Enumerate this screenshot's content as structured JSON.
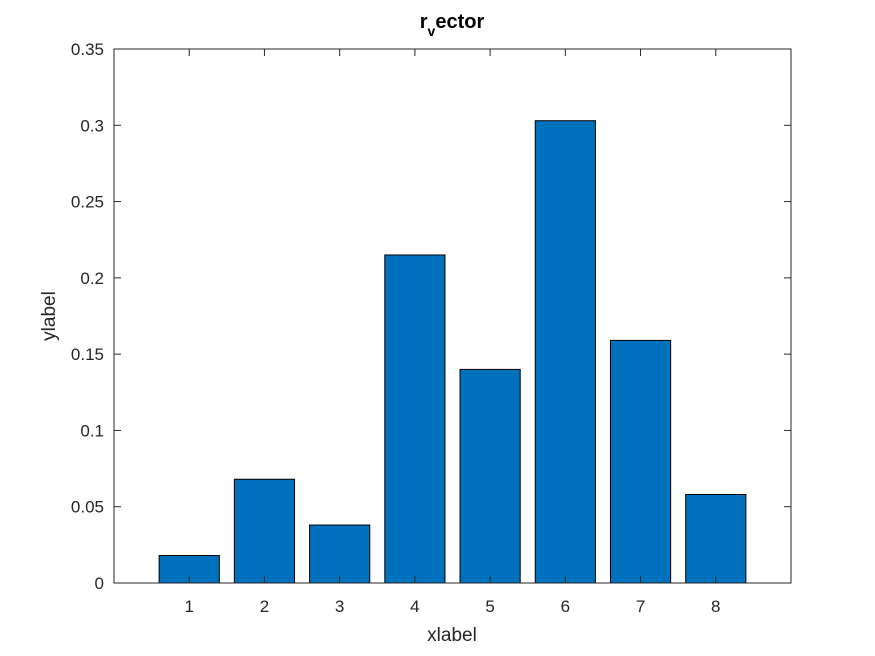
{
  "chart_data": {
    "type": "bar",
    "title": {
      "main_before": "r",
      "subscript": "v",
      "main_after": "ector"
    },
    "xlabel": "xlabel",
    "ylabel": "ylabel",
    "categories": [
      "1",
      "2",
      "3",
      "4",
      "5",
      "6",
      "7",
      "8"
    ],
    "values": [
      0.018,
      0.068,
      0.038,
      0.215,
      0.14,
      0.303,
      0.159,
      0.058
    ],
    "xlim": [
      0,
      9
    ],
    "ylim": [
      0,
      0.35
    ],
    "yticks": [
      "0",
      "0.05",
      "0.1",
      "0.15",
      "0.2",
      "0.25",
      "0.3",
      "0.35"
    ],
    "ytick_values": [
      0,
      0.05,
      0.1,
      0.15,
      0.2,
      0.25,
      0.3,
      0.35
    ],
    "grid": false,
    "bar_color": "#0072BD",
    "bar_edge_color": "#000000",
    "axis_color": "#262626"
  }
}
